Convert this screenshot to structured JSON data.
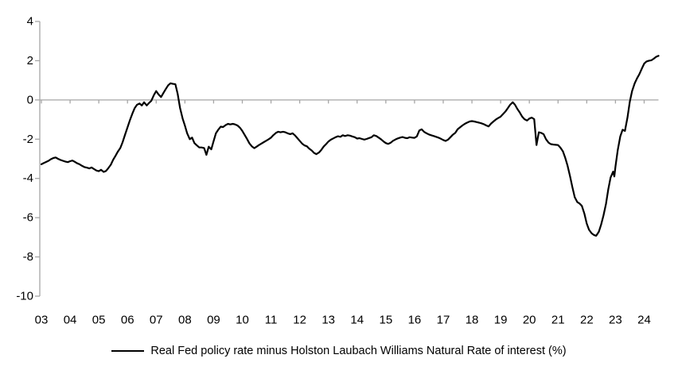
{
  "chart_data": {
    "type": "line",
    "title": "",
    "xlabel": "",
    "ylabel": "",
    "ylim": [
      -10,
      4
    ],
    "xlim": [
      2003,
      2024.55
    ],
    "grid": "zero-line-only",
    "legend_position": "bottom-center",
    "axis_color": "#A6A6A6",
    "background_color": "#FFFFFF",
    "y_ticks": [
      4,
      2,
      0,
      -2,
      -4,
      -6,
      -8,
      -10
    ],
    "x_ticks": [
      "03",
      "04",
      "05",
      "06",
      "07",
      "08",
      "09",
      "10",
      "11",
      "12",
      "13",
      "14",
      "15",
      "16",
      "17",
      "18",
      "19",
      "20",
      "21",
      "22",
      "23",
      "24"
    ],
    "x_tick_years": [
      2003,
      2004,
      2005,
      2006,
      2007,
      2008,
      2009,
      2010,
      2011,
      2012,
      2013,
      2014,
      2015,
      2016,
      2017,
      2018,
      2019,
      2020,
      2021,
      2022,
      2023,
      2024
    ],
    "series": [
      {
        "name": "Real Fed policy rate minus Holston Laubach Williams Natural Rate of interest (%)",
        "color": "#000000",
        "line_width": 2.2,
        "points": [
          [
            2003.0,
            -3.28
          ],
          [
            2003.08,
            -3.22
          ],
          [
            2003.17,
            -3.16
          ],
          [
            2003.25,
            -3.1
          ],
          [
            2003.33,
            -3.02
          ],
          [
            2003.42,
            -2.96
          ],
          [
            2003.5,
            -2.93
          ],
          [
            2003.58,
            -3.0
          ],
          [
            2003.67,
            -3.06
          ],
          [
            2003.75,
            -3.1
          ],
          [
            2003.83,
            -3.14
          ],
          [
            2003.92,
            -3.17
          ],
          [
            2004.0,
            -3.12
          ],
          [
            2004.08,
            -3.09
          ],
          [
            2004.17,
            -3.16
          ],
          [
            2004.25,
            -3.23
          ],
          [
            2004.33,
            -3.28
          ],
          [
            2004.42,
            -3.36
          ],
          [
            2004.5,
            -3.42
          ],
          [
            2004.58,
            -3.45
          ],
          [
            2004.67,
            -3.49
          ],
          [
            2004.75,
            -3.44
          ],
          [
            2004.83,
            -3.52
          ],
          [
            2004.92,
            -3.6
          ],
          [
            2005.0,
            -3.63
          ],
          [
            2005.08,
            -3.56
          ],
          [
            2005.17,
            -3.67
          ],
          [
            2005.25,
            -3.62
          ],
          [
            2005.33,
            -3.48
          ],
          [
            2005.42,
            -3.3
          ],
          [
            2005.5,
            -3.05
          ],
          [
            2005.58,
            -2.85
          ],
          [
            2005.67,
            -2.62
          ],
          [
            2005.75,
            -2.45
          ],
          [
            2005.83,
            -2.15
          ],
          [
            2005.92,
            -1.75
          ],
          [
            2006.0,
            -1.4
          ],
          [
            2006.08,
            -1.05
          ],
          [
            2006.17,
            -0.7
          ],
          [
            2006.25,
            -0.42
          ],
          [
            2006.33,
            -0.25
          ],
          [
            2006.42,
            -0.18
          ],
          [
            2006.5,
            -0.28
          ],
          [
            2006.58,
            -0.12
          ],
          [
            2006.67,
            -0.28
          ],
          [
            2006.75,
            -0.15
          ],
          [
            2006.83,
            -0.05
          ],
          [
            2006.92,
            0.25
          ],
          [
            2007.0,
            0.45
          ],
          [
            2007.08,
            0.28
          ],
          [
            2007.17,
            0.15
          ],
          [
            2007.25,
            0.35
          ],
          [
            2007.33,
            0.55
          ],
          [
            2007.42,
            0.75
          ],
          [
            2007.5,
            0.85
          ],
          [
            2007.58,
            0.82
          ],
          [
            2007.67,
            0.8
          ],
          [
            2007.75,
            0.3
          ],
          [
            2007.83,
            -0.4
          ],
          [
            2007.92,
            -0.95
          ],
          [
            2008.0,
            -1.3
          ],
          [
            2008.08,
            -1.7
          ],
          [
            2008.17,
            -2.0
          ],
          [
            2008.25,
            -1.92
          ],
          [
            2008.33,
            -2.2
          ],
          [
            2008.42,
            -2.32
          ],
          [
            2008.5,
            -2.42
          ],
          [
            2008.58,
            -2.42
          ],
          [
            2008.67,
            -2.45
          ],
          [
            2008.75,
            -2.8
          ],
          [
            2008.83,
            -2.38
          ],
          [
            2008.92,
            -2.52
          ],
          [
            2009.0,
            -2.1
          ],
          [
            2009.08,
            -1.7
          ],
          [
            2009.17,
            -1.5
          ],
          [
            2009.25,
            -1.36
          ],
          [
            2009.33,
            -1.38
          ],
          [
            2009.42,
            -1.28
          ],
          [
            2009.5,
            -1.22
          ],
          [
            2009.58,
            -1.25
          ],
          [
            2009.67,
            -1.22
          ],
          [
            2009.75,
            -1.25
          ],
          [
            2009.83,
            -1.3
          ],
          [
            2009.92,
            -1.42
          ],
          [
            2010.0,
            -1.58
          ],
          [
            2010.08,
            -1.78
          ],
          [
            2010.17,
            -2.0
          ],
          [
            2010.25,
            -2.22
          ],
          [
            2010.33,
            -2.36
          ],
          [
            2010.42,
            -2.46
          ],
          [
            2010.5,
            -2.38
          ],
          [
            2010.58,
            -2.3
          ],
          [
            2010.67,
            -2.22
          ],
          [
            2010.75,
            -2.15
          ],
          [
            2010.83,
            -2.08
          ],
          [
            2010.92,
            -2.0
          ],
          [
            2011.0,
            -1.92
          ],
          [
            2011.08,
            -1.8
          ],
          [
            2011.17,
            -1.68
          ],
          [
            2011.25,
            -1.62
          ],
          [
            2011.33,
            -1.65
          ],
          [
            2011.42,
            -1.62
          ],
          [
            2011.5,
            -1.65
          ],
          [
            2011.58,
            -1.7
          ],
          [
            2011.67,
            -1.74
          ],
          [
            2011.75,
            -1.7
          ],
          [
            2011.83,
            -1.8
          ],
          [
            2011.92,
            -1.95
          ],
          [
            2012.0,
            -2.08
          ],
          [
            2012.08,
            -2.22
          ],
          [
            2012.17,
            -2.32
          ],
          [
            2012.25,
            -2.36
          ],
          [
            2012.33,
            -2.48
          ],
          [
            2012.42,
            -2.58
          ],
          [
            2012.5,
            -2.7
          ],
          [
            2012.58,
            -2.76
          ],
          [
            2012.67,
            -2.68
          ],
          [
            2012.75,
            -2.55
          ],
          [
            2012.83,
            -2.38
          ],
          [
            2012.92,
            -2.25
          ],
          [
            2013.0,
            -2.12
          ],
          [
            2013.08,
            -2.03
          ],
          [
            2013.17,
            -1.96
          ],
          [
            2013.25,
            -1.9
          ],
          [
            2013.33,
            -1.85
          ],
          [
            2013.42,
            -1.88
          ],
          [
            2013.5,
            -1.8
          ],
          [
            2013.58,
            -1.84
          ],
          [
            2013.67,
            -1.8
          ],
          [
            2013.75,
            -1.82
          ],
          [
            2013.83,
            -1.86
          ],
          [
            2013.92,
            -1.9
          ],
          [
            2014.0,
            -1.97
          ],
          [
            2014.08,
            -1.95
          ],
          [
            2014.17,
            -1.99
          ],
          [
            2014.25,
            -2.02
          ],
          [
            2014.33,
            -1.99
          ],
          [
            2014.42,
            -1.94
          ],
          [
            2014.5,
            -1.9
          ],
          [
            2014.58,
            -1.8
          ],
          [
            2014.67,
            -1.84
          ],
          [
            2014.75,
            -1.92
          ],
          [
            2014.83,
            -2.0
          ],
          [
            2014.92,
            -2.12
          ],
          [
            2015.0,
            -2.2
          ],
          [
            2015.08,
            -2.24
          ],
          [
            2015.17,
            -2.18
          ],
          [
            2015.25,
            -2.08
          ],
          [
            2015.33,
            -2.02
          ],
          [
            2015.42,
            -1.96
          ],
          [
            2015.5,
            -1.92
          ],
          [
            2015.58,
            -1.89
          ],
          [
            2015.67,
            -1.93
          ],
          [
            2015.75,
            -1.95
          ],
          [
            2015.83,
            -1.9
          ],
          [
            2015.92,
            -1.92
          ],
          [
            2016.0,
            -1.93
          ],
          [
            2016.08,
            -1.86
          ],
          [
            2016.17,
            -1.55
          ],
          [
            2016.25,
            -1.5
          ],
          [
            2016.33,
            -1.62
          ],
          [
            2016.42,
            -1.7
          ],
          [
            2016.5,
            -1.76
          ],
          [
            2016.58,
            -1.8
          ],
          [
            2016.67,
            -1.84
          ],
          [
            2016.75,
            -1.88
          ],
          [
            2016.83,
            -1.92
          ],
          [
            2016.92,
            -1.98
          ],
          [
            2017.0,
            -2.04
          ],
          [
            2017.08,
            -2.09
          ],
          [
            2017.17,
            -2.02
          ],
          [
            2017.25,
            -1.9
          ],
          [
            2017.33,
            -1.78
          ],
          [
            2017.42,
            -1.68
          ],
          [
            2017.5,
            -1.5
          ],
          [
            2017.58,
            -1.4
          ],
          [
            2017.67,
            -1.3
          ],
          [
            2017.75,
            -1.22
          ],
          [
            2017.83,
            -1.16
          ],
          [
            2017.92,
            -1.1
          ],
          [
            2018.0,
            -1.08
          ],
          [
            2018.08,
            -1.1
          ],
          [
            2018.17,
            -1.13
          ],
          [
            2018.25,
            -1.16
          ],
          [
            2018.33,
            -1.19
          ],
          [
            2018.42,
            -1.24
          ],
          [
            2018.5,
            -1.3
          ],
          [
            2018.58,
            -1.35
          ],
          [
            2018.67,
            -1.2
          ],
          [
            2018.75,
            -1.1
          ],
          [
            2018.83,
            -1.0
          ],
          [
            2018.92,
            -0.92
          ],
          [
            2019.0,
            -0.85
          ],
          [
            2019.08,
            -0.72
          ],
          [
            2019.17,
            -0.58
          ],
          [
            2019.25,
            -0.42
          ],
          [
            2019.33,
            -0.25
          ],
          [
            2019.42,
            -0.12
          ],
          [
            2019.5,
            -0.25
          ],
          [
            2019.58,
            -0.45
          ],
          [
            2019.67,
            -0.65
          ],
          [
            2019.75,
            -0.85
          ],
          [
            2019.83,
            -0.98
          ],
          [
            2019.92,
            -1.05
          ],
          [
            2020.0,
            -0.95
          ],
          [
            2020.08,
            -0.9
          ],
          [
            2020.17,
            -0.98
          ],
          [
            2020.25,
            -2.3
          ],
          [
            2020.33,
            -1.65
          ],
          [
            2020.42,
            -1.68
          ],
          [
            2020.5,
            -1.75
          ],
          [
            2020.58,
            -2.0
          ],
          [
            2020.67,
            -2.18
          ],
          [
            2020.75,
            -2.25
          ],
          [
            2020.83,
            -2.27
          ],
          [
            2020.92,
            -2.29
          ],
          [
            2021.0,
            -2.3
          ],
          [
            2021.08,
            -2.42
          ],
          [
            2021.17,
            -2.62
          ],
          [
            2021.25,
            -2.95
          ],
          [
            2021.33,
            -3.35
          ],
          [
            2021.42,
            -3.9
          ],
          [
            2021.5,
            -4.45
          ],
          [
            2021.58,
            -4.95
          ],
          [
            2021.67,
            -5.2
          ],
          [
            2021.75,
            -5.28
          ],
          [
            2021.83,
            -5.4
          ],
          [
            2021.92,
            -5.8
          ],
          [
            2022.0,
            -6.3
          ],
          [
            2022.08,
            -6.62
          ],
          [
            2022.17,
            -6.8
          ],
          [
            2022.25,
            -6.88
          ],
          [
            2022.33,
            -6.92
          ],
          [
            2022.42,
            -6.72
          ],
          [
            2022.5,
            -6.35
          ],
          [
            2022.58,
            -5.9
          ],
          [
            2022.67,
            -5.3
          ],
          [
            2022.75,
            -4.55
          ],
          [
            2022.83,
            -3.95
          ],
          [
            2022.92,
            -3.65
          ],
          [
            2022.96,
            -3.9
          ],
          [
            2023.0,
            -3.4
          ],
          [
            2023.08,
            -2.55
          ],
          [
            2023.17,
            -1.85
          ],
          [
            2023.25,
            -1.52
          ],
          [
            2023.33,
            -1.58
          ],
          [
            2023.42,
            -0.9
          ],
          [
            2023.5,
            -0.1
          ],
          [
            2023.58,
            0.45
          ],
          [
            2023.67,
            0.85
          ],
          [
            2023.75,
            1.1
          ],
          [
            2023.83,
            1.3
          ],
          [
            2023.92,
            1.6
          ],
          [
            2024.0,
            1.85
          ],
          [
            2024.08,
            1.96
          ],
          [
            2024.17,
            2.0
          ],
          [
            2024.25,
            2.02
          ],
          [
            2024.33,
            2.1
          ],
          [
            2024.42,
            2.2
          ],
          [
            2024.5,
            2.25
          ]
        ]
      }
    ]
  },
  "legend": {
    "label": "Real Fed policy rate minus Holston Laubach Williams Natural Rate of interest (%)"
  }
}
